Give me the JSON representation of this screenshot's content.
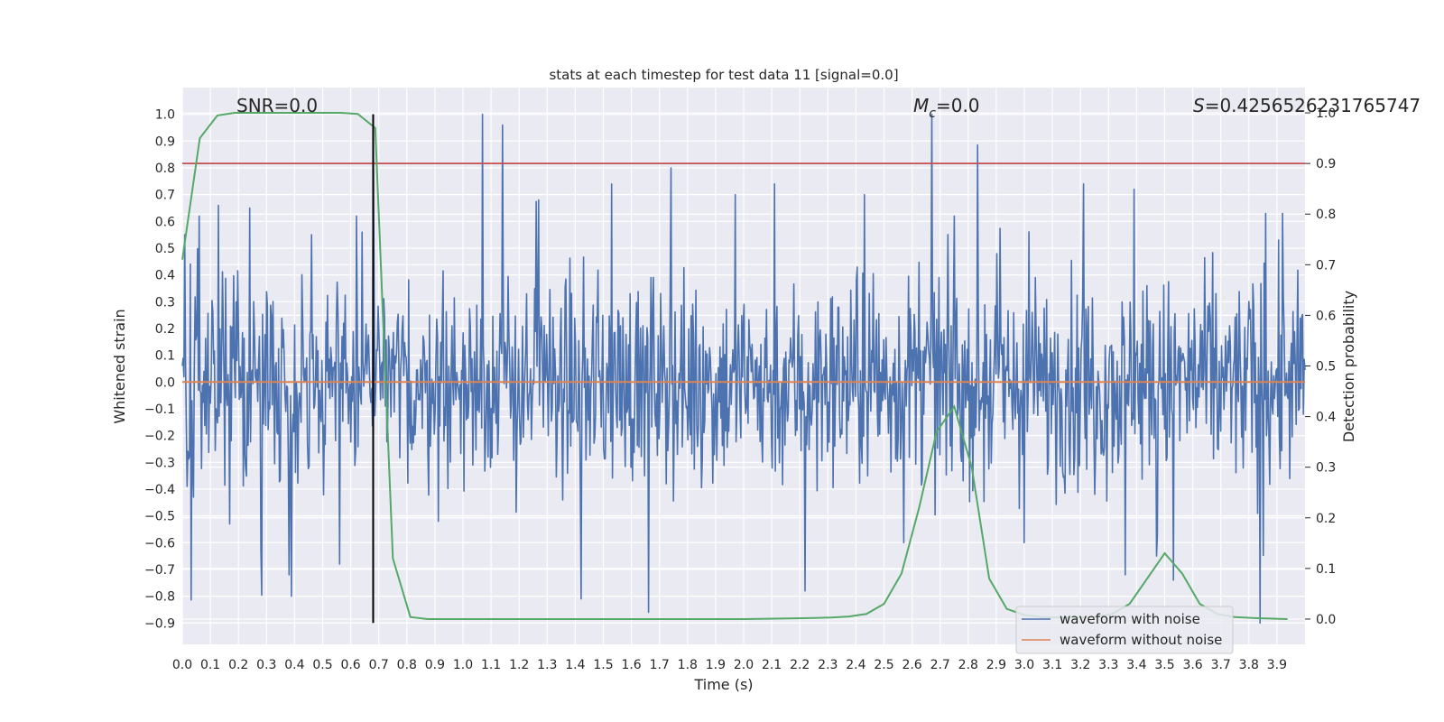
{
  "chart_data": {
    "type": "line",
    "title": "stats at each timestep for test data 11 [signal=0.0]",
    "xlabel": "Time (s)",
    "ylabel": "Whitened strain",
    "y2label": "Detection probability",
    "xlim": [
      0.0,
      4.0
    ],
    "ylim": [
      -0.98,
      1.1
    ],
    "y2lim": [
      -0.05,
      1.05
    ],
    "xticks": [
      0.0,
      0.1,
      0.2,
      0.3,
      0.4,
      0.5,
      0.6,
      0.7,
      0.8,
      0.9,
      1.0,
      1.1,
      1.2,
      1.3,
      1.4,
      1.5,
      1.6,
      1.7,
      1.8,
      1.9,
      2.0,
      2.1,
      2.2,
      2.3,
      2.4,
      2.5,
      2.6,
      2.7,
      2.8,
      2.9,
      3.0,
      3.1,
      3.2,
      3.3,
      3.4,
      3.5,
      3.6,
      3.7,
      3.8,
      3.9
    ],
    "xtick_labels": [
      "0.0",
      "0.1",
      "0.2",
      "0.3",
      "0.4",
      "0.5",
      "0.6",
      "0.7",
      "0.8",
      "0.9",
      "1.0",
      "1.1",
      "1.2",
      "1.3",
      "1.4",
      "1.5",
      "1.6",
      "1.7",
      "1.8",
      "1.9",
      "2.0",
      "2.1",
      "2.2",
      "2.3",
      "2.4",
      "2.5",
      "2.6",
      "2.7",
      "2.8",
      "2.9",
      "3.0",
      "3.1",
      "3.2",
      "3.3",
      "3.4",
      "3.5",
      "3.6",
      "3.7",
      "3.8",
      "3.9"
    ],
    "yticks": [
      -0.9,
      -0.8,
      -0.7,
      -0.6,
      -0.5,
      -0.4,
      -0.3,
      -0.2,
      -0.1,
      0.0,
      0.1,
      0.2,
      0.3,
      0.4,
      0.5,
      0.6,
      0.7,
      0.8,
      0.9,
      1.0
    ],
    "ytick_labels": [
      "−0.9",
      "−0.8",
      "−0.7",
      "−0.6",
      "−0.5",
      "−0.4",
      "−0.3",
      "−0.2",
      "−0.1",
      "0.0",
      "0.1",
      "0.2",
      "0.3",
      "0.4",
      "0.5",
      "0.6",
      "0.7",
      "0.8",
      "0.9",
      "1.0"
    ],
    "y2ticks": [
      0.0,
      0.1,
      0.2,
      0.3,
      0.4,
      0.5,
      0.6,
      0.7,
      0.8,
      0.9,
      1.0
    ],
    "y2tick_labels": [
      "0.0",
      "0.1",
      "0.2",
      "0.3",
      "0.4",
      "0.5",
      "0.6",
      "0.7",
      "0.8",
      "0.9",
      "1.0"
    ],
    "annotations": {
      "snr": "SNR=0.0",
      "mc_symbol": "M",
      "mc_subscript": "c",
      "mc_value": "=0.0",
      "s_symbol": "S",
      "s_value": "=0.4256526231765747"
    },
    "series": [
      {
        "name": "waveform with noise",
        "color": "#4c72b0",
        "description": "dense noisy whitened strain, sampled from 0 to 4 s",
        "noise_amplitude": 0.26,
        "sample_count": 1400,
        "peaks": [
          [
            0.01,
            0.55
          ],
          [
            0.04,
            -0.43
          ],
          [
            0.06,
            0.62
          ],
          [
            0.13,
            0.66
          ],
          [
            0.17,
            -0.53
          ],
          [
            0.24,
            0.65
          ],
          [
            0.28,
            -0.63
          ],
          [
            0.38,
            -0.72
          ],
          [
            0.39,
            0.63
          ],
          [
            0.39,
            -0.8
          ],
          [
            0.46,
            0.55
          ],
          [
            0.56,
            -0.68
          ],
          [
            0.62,
            0.62
          ],
          [
            0.64,
            0.56
          ],
          [
            0.68,
            0.95
          ],
          [
            1.07,
            1.0
          ],
          [
            1.14,
            0.96
          ],
          [
            1.27,
            0.68
          ],
          [
            1.42,
            -0.81
          ],
          [
            1.53,
            0.74
          ],
          [
            1.66,
            -0.86
          ],
          [
            1.74,
            0.8
          ],
          [
            1.97,
            0.7
          ],
          [
            2.11,
            0.74
          ],
          [
            2.22,
            -0.78
          ],
          [
            2.43,
            0.7
          ],
          [
            2.57,
            -0.6
          ],
          [
            2.67,
            1.0
          ],
          [
            2.75,
            0.62
          ],
          [
            3.0,
            -0.6
          ],
          [
            3.21,
            0.74
          ],
          [
            3.36,
            -0.72
          ],
          [
            3.39,
            0.72
          ],
          [
            3.47,
            -0.65
          ],
          [
            3.53,
            -0.74
          ],
          [
            3.84,
            -0.9
          ],
          [
            3.86,
            0.63
          ],
          [
            3.92,
            0.63
          ]
        ]
      },
      {
        "name": "waveform without noise",
        "color": "#dd8452",
        "x": [
          0.0,
          4.0
        ],
        "y": [
          0.0,
          0.0
        ]
      },
      {
        "name": "detection probability",
        "color": "#55a868",
        "axis": "right",
        "x": [
          0.0,
          0.0625,
          0.125,
          0.1875,
          0.25,
          0.3125,
          0.375,
          0.4375,
          0.5,
          0.5625,
          0.625,
          0.6875,
          0.75,
          0.8125,
          0.875,
          0.9375,
          1.0,
          1.5,
          2.0,
          2.25,
          2.3125,
          2.375,
          2.4375,
          2.5,
          2.5625,
          2.625,
          2.6875,
          2.75,
          2.8125,
          2.875,
          2.9375,
          3.0,
          3.0625,
          3.125,
          3.1875,
          3.25,
          3.3125,
          3.375,
          3.4375,
          3.5,
          3.5625,
          3.625,
          3.6875,
          3.75,
          3.8125,
          3.875,
          3.9375
        ],
        "y": [
          0.71,
          0.95,
          0.995,
          1.0,
          1.0,
          1.0,
          1.0,
          1.0,
          1.0,
          1.0,
          0.998,
          0.97,
          0.12,
          0.004,
          0.0,
          0.0,
          0.0,
          0.0,
          0.0,
          0.002,
          0.003,
          0.005,
          0.01,
          0.03,
          0.09,
          0.22,
          0.37,
          0.42,
          0.3,
          0.08,
          0.02,
          0.008,
          0.004,
          0.003,
          0.003,
          0.004,
          0.01,
          0.03,
          0.08,
          0.13,
          0.09,
          0.03,
          0.01,
          0.004,
          0.002,
          0.001,
          0.0
        ]
      }
    ],
    "hlines": [
      {
        "name": "threshold",
        "axis": "right",
        "value": 0.9,
        "color": "#c44e52"
      }
    ],
    "vlines": [
      {
        "name": "marker",
        "x": 0.68,
        "ymin": -0.9,
        "ymax": 1.0,
        "color": "#000000"
      }
    ],
    "legend": {
      "placement": "bottom-right",
      "entries": [
        {
          "label": "waveform with noise",
          "color": "#4c72b0"
        },
        {
          "label": "waveform without noise",
          "color": "#dd8452"
        }
      ]
    },
    "background": "#eaeaf2",
    "grid": true
  }
}
